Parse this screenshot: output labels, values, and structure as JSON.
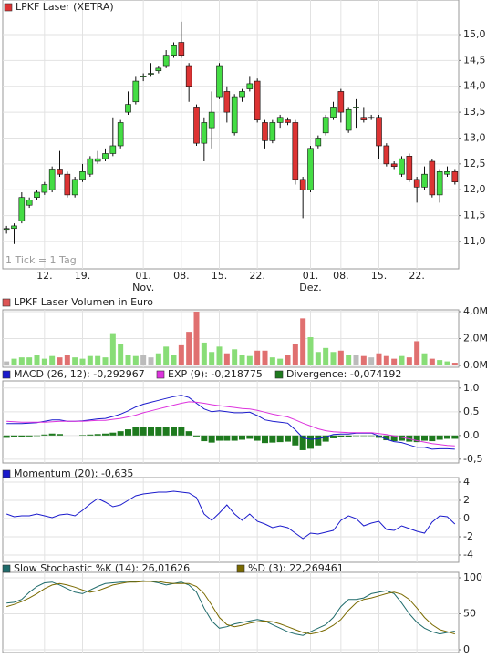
{
  "chart_data": [
    {
      "type": "candlestick",
      "annotation": "1 Tick = 1 Tag",
      "categories": [
        null,
        null,
        null,
        null,
        null,
        "12.",
        null,
        null,
        null,
        null,
        "19.",
        null,
        null,
        null,
        null,
        null,
        null,
        null,
        "01.",
        null,
        null,
        null,
        null,
        "08.",
        null,
        null,
        null,
        null,
        "15.",
        null,
        null,
        null,
        null,
        "22.",
        null,
        null,
        null,
        null,
        null,
        null,
        "01.",
        null,
        null,
        null,
        "08.",
        null,
        null,
        null,
        null,
        "15.",
        null,
        null,
        null,
        null,
        "22.",
        null,
        null,
        null,
        null,
        null
      ],
      "month_labels": [
        null,
        null,
        null,
        null,
        null,
        null,
        null,
        null,
        null,
        null,
        null,
        null,
        null,
        null,
        null,
        null,
        null,
        null,
        "Nov.",
        null,
        null,
        null,
        null,
        null,
        null,
        null,
        null,
        null,
        null,
        null,
        null,
        null,
        null,
        null,
        null,
        null,
        null,
        null,
        null,
        null,
        "Dez.",
        null,
        null,
        null,
        null,
        null,
        null,
        null,
        null,
        null,
        null,
        null,
        null,
        null,
        null,
        null,
        null,
        null,
        null,
        null
      ],
      "up_color": "#44dd44",
      "down_color": "#dd3333",
      "series": [
        {
          "name": "LPKF Laser (XETRA)",
          "color": "#dd3333",
          "open": [
            11.25,
            11.25,
            11.4,
            11.7,
            11.85,
            11.95,
            12.0,
            12.4,
            12.3,
            11.9,
            12.2,
            12.3,
            12.55,
            12.6,
            12.7,
            12.85,
            13.5,
            13.7,
            14.2,
            14.25,
            14.3,
            14.4,
            14.6,
            14.85,
            14.4,
            13.6,
            12.9,
            13.2,
            13.8,
            13.9,
            13.1,
            13.8,
            13.95,
            14.1,
            13.3,
            12.95,
            13.3,
            13.35,
            13.3,
            12.2,
            12.0,
            12.85,
            13.1,
            13.4,
            13.9,
            13.15,
            13.6,
            13.4,
            13.4,
            13.4,
            12.85,
            12.5,
            12.3,
            12.65,
            12.2,
            12.05,
            12.55,
            11.9,
            12.3,
            12.35
          ],
          "high": [
            11.3,
            11.35,
            11.95,
            11.85,
            12.0,
            12.15,
            12.45,
            12.75,
            12.35,
            12.25,
            12.5,
            12.65,
            12.75,
            12.8,
            13.4,
            13.35,
            13.9,
            14.2,
            14.25,
            14.45,
            14.4,
            14.7,
            14.85,
            15.25,
            14.45,
            13.65,
            13.4,
            13.9,
            14.45,
            14.0,
            13.85,
            13.95,
            14.2,
            14.15,
            13.35,
            13.35,
            13.45,
            13.4,
            13.35,
            12.25,
            12.85,
            13.05,
            13.45,
            13.7,
            13.95,
            13.6,
            13.75,
            13.6,
            13.45,
            13.45,
            12.9,
            12.55,
            12.65,
            12.7,
            12.25,
            12.45,
            12.6,
            12.4,
            12.45,
            12.4
          ],
          "low": [
            11.15,
            10.95,
            11.35,
            11.65,
            11.8,
            11.9,
            11.95,
            12.25,
            11.85,
            11.85,
            12.15,
            12.25,
            12.5,
            12.55,
            12.65,
            12.8,
            13.45,
            13.65,
            14.1,
            14.2,
            14.25,
            14.35,
            14.55,
            14.55,
            13.7,
            12.85,
            12.55,
            12.8,
            13.75,
            13.3,
            13.05,
            13.7,
            13.9,
            13.3,
            12.8,
            12.9,
            13.2,
            13.25,
            12.1,
            11.45,
            11.95,
            12.8,
            13.05,
            13.35,
            13.3,
            13.1,
            13.2,
            13.3,
            13.35,
            12.6,
            12.45,
            12.4,
            12.25,
            12.15,
            11.75,
            12.0,
            11.85,
            11.75,
            12.25,
            12.1
          ],
          "close": [
            11.25,
            11.3,
            11.85,
            11.8,
            11.95,
            12.1,
            12.4,
            12.3,
            11.9,
            12.2,
            12.35,
            12.6,
            12.6,
            12.7,
            12.85,
            13.3,
            13.65,
            14.1,
            14.2,
            14.25,
            14.35,
            14.6,
            14.8,
            14.6,
            14.0,
            12.9,
            13.3,
            13.5,
            14.4,
            13.5,
            13.8,
            13.9,
            14.05,
            13.35,
            12.95,
            13.3,
            13.4,
            13.3,
            12.2,
            12.0,
            12.8,
            13.0,
            13.4,
            13.6,
            13.5,
            13.55,
            13.6,
            13.35,
            13.4,
            12.85,
            12.5,
            12.45,
            12.6,
            12.2,
            12.05,
            12.3,
            11.9,
            12.35,
            12.35,
            12.15
          ]
        }
      ],
      "ylim": [
        10.47,
        15.67
      ],
      "yticks": [
        {
          "value": 11.0,
          "label": "11,0"
        },
        {
          "value": 11.5,
          "label": "11,5"
        },
        {
          "value": 12.0,
          "label": "12,0"
        },
        {
          "value": 12.5,
          "label": "12,5"
        },
        {
          "value": 13.0,
          "label": "13,0"
        },
        {
          "value": 13.5,
          "label": "13,5"
        },
        {
          "value": 14.0,
          "label": "14,0"
        },
        {
          "value": 14.5,
          "label": "14,5"
        },
        {
          "value": 15.0,
          "label": "15,0"
        }
      ],
      "grid": true
    },
    {
      "type": "bar",
      "up_color": "#88dd77",
      "down_color": "#e07070",
      "flat_color": "#bbbbbb",
      "series": [
        {
          "name": "LPKF Laser Volumen in Euro",
          "color": "#dd5555",
          "values": [
            300000,
            500000,
            600000,
            600000,
            800000,
            500000,
            700000,
            600000,
            800000,
            600000,
            500000,
            700000,
            700000,
            600000,
            2400000,
            1600000,
            800000,
            700000,
            800000,
            600000,
            900000,
            1400000,
            800000,
            1500000,
            2500000,
            4000000,
            1700000,
            1000000,
            1400000,
            900000,
            1200000,
            800000,
            700000,
            1100000,
            1100000,
            600000,
            500000,
            800000,
            1600000,
            3500000,
            2100000,
            1000000,
            1300000,
            1000000,
            1100000,
            800000,
            800000,
            700000,
            600000,
            900000,
            700000,
            500000,
            700000,
            600000,
            1800000,
            900000,
            500000,
            400000,
            300000,
            200000
          ]
        }
      ],
      "ylim": [
        -135000,
        4135000
      ],
      "yticks": [
        {
          "value": 0,
          "label": "0,0M"
        },
        {
          "value": 2000000,
          "label": "2,0M"
        },
        {
          "value": 4000000,
          "label": "4,0M"
        }
      ],
      "grid": true
    },
    {
      "type": "line",
      "series": [
        {
          "name": "MACD (26, 12): -0,292967",
          "color": "#1a1acc",
          "values": [
            0.25,
            0.25,
            0.25,
            0.26,
            0.27,
            0.3,
            0.33,
            0.33,
            0.3,
            0.3,
            0.31,
            0.33,
            0.35,
            0.36,
            0.4,
            0.45,
            0.52,
            0.6,
            0.66,
            0.7,
            0.74,
            0.78,
            0.82,
            0.85,
            0.8,
            0.68,
            0.56,
            0.5,
            0.52,
            0.5,
            0.48,
            0.48,
            0.49,
            0.42,
            0.33,
            0.3,
            0.28,
            0.26,
            0.12,
            -0.05,
            -0.08,
            -0.07,
            -0.03,
            0.02,
            0.03,
            0.03,
            0.05,
            0.05,
            0.05,
            -0.01,
            -0.08,
            -0.13,
            -0.15,
            -0.2,
            -0.25,
            -0.25,
            -0.29,
            -0.28,
            -0.28,
            -0.29
          ]
        },
        {
          "name": "EXP (9): -0,218775",
          "color": "#dd33dd",
          "values": [
            0.3,
            0.29,
            0.28,
            0.28,
            0.28,
            0.28,
            0.29,
            0.3,
            0.3,
            0.3,
            0.3,
            0.31,
            0.32,
            0.32,
            0.34,
            0.36,
            0.39,
            0.43,
            0.48,
            0.52,
            0.56,
            0.6,
            0.64,
            0.68,
            0.71,
            0.7,
            0.68,
            0.65,
            0.63,
            0.61,
            0.59,
            0.57,
            0.56,
            0.53,
            0.49,
            0.45,
            0.42,
            0.39,
            0.33,
            0.26,
            0.2,
            0.14,
            0.1,
            0.08,
            0.07,
            0.06,
            0.06,
            0.06,
            0.06,
            0.04,
            0.02,
            -0.01,
            -0.04,
            -0.07,
            -0.11,
            -0.14,
            -0.17,
            -0.19,
            -0.21,
            -0.22
          ]
        },
        {
          "name": "Divergence: -0,074192",
          "color": "#1e7a1e",
          "type": "bar",
          "values": [
            -0.05,
            -0.04,
            -0.03,
            -0.02,
            -0.01,
            0.02,
            0.04,
            0.03,
            0,
            0,
            0.01,
            0.02,
            0.03,
            0.04,
            0.06,
            0.09,
            0.13,
            0.17,
            0.18,
            0.18,
            0.18,
            0.18,
            0.18,
            0.17,
            0.09,
            -0.02,
            -0.12,
            -0.15,
            -0.11,
            -0.11,
            -0.11,
            -0.09,
            -0.07,
            -0.11,
            -0.16,
            -0.15,
            -0.14,
            -0.13,
            -0.21,
            -0.31,
            -0.28,
            -0.21,
            -0.13,
            -0.06,
            -0.04,
            -0.03,
            -0.01,
            -0.01,
            -0.01,
            -0.05,
            -0.1,
            -0.12,
            -0.11,
            -0.13,
            -0.14,
            -0.11,
            -0.12,
            -0.09,
            -0.07,
            -0.07
          ]
        }
      ],
      "ylim": [
        -0.58,
        1.15
      ],
      "yticks": [
        {
          "value": -0.5,
          "label": "-0,5"
        },
        {
          "value": 0.0,
          "label": "0,0"
        },
        {
          "value": 0.5,
          "label": "0,5"
        },
        {
          "value": 1.0,
          "label": "1,0"
        }
      ],
      "grid": true
    },
    {
      "type": "line",
      "series": [
        {
          "name": "Momentum (20): -0,635",
          "color": "#1a1acc",
          "values": [
            0.5,
            0.2,
            0.3,
            0.3,
            0.5,
            0.3,
            0.1,
            0.4,
            0.5,
            0.3,
            0.9,
            1.6,
            2.2,
            1.8,
            1.3,
            1.5,
            2.0,
            2.5,
            2.7,
            2.8,
            2.9,
            2.9,
            3.0,
            2.9,
            2.8,
            2.3,
            0.5,
            -0.2,
            0.6,
            1.5,
            0.5,
            -0.2,
            0.5,
            -0.3,
            -0.6,
            -1.0,
            -0.8,
            -1.0,
            -1.6,
            -2.2,
            -1.6,
            -1.7,
            -1.5,
            -1.3,
            -0.2,
            0.3,
            0.0,
            -0.8,
            -0.5,
            -0.3,
            -1.2,
            -1.3,
            -0.8,
            -1.1,
            -1.4,
            -1.6,
            -0.4,
            0.3,
            0.2,
            -0.6
          ]
        }
      ],
      "ylim": [
        -4.8,
        4.5
      ],
      "yticks": [
        -4,
        -2,
        0,
        2,
        4
      ],
      "grid": true
    },
    {
      "type": "line",
      "series": [
        {
          "name": "Slow Stochastic %K (14): 26,01626",
          "color": "#1f6b6b",
          "values": [
            65,
            66,
            70,
            80,
            88,
            93,
            94,
            90,
            85,
            80,
            78,
            83,
            88,
            92,
            93,
            94,
            94,
            95,
            96,
            95,
            93,
            90,
            92,
            94,
            90,
            80,
            58,
            40,
            30,
            32,
            36,
            38,
            40,
            42,
            40,
            35,
            30,
            25,
            22,
            20,
            25,
            30,
            35,
            45,
            60,
            70,
            70,
            72,
            78,
            80,
            82,
            78,
            65,
            50,
            38,
            30,
            25,
            22,
            24,
            26
          ]
        },
        {
          "name": "%D (3): 22,269461",
          "color": "#7a6a00",
          "values": [
            60,
            63,
            67,
            72,
            78,
            85,
            90,
            92,
            90,
            87,
            83,
            80,
            82,
            86,
            90,
            92,
            94,
            94,
            95,
            95,
            95,
            93,
            92,
            92,
            92,
            88,
            78,
            62,
            45,
            35,
            32,
            34,
            37,
            39,
            40,
            39,
            36,
            32,
            28,
            24,
            22,
            24,
            28,
            34,
            42,
            55,
            65,
            70,
            72,
            75,
            78,
            80,
            77,
            70,
            58,
            45,
            35,
            28,
            25,
            22
          ]
        }
      ],
      "ylim": [
        -3.8,
        107.6
      ],
      "yticks": [
        0,
        50,
        100
      ],
      "grid": true
    }
  ]
}
